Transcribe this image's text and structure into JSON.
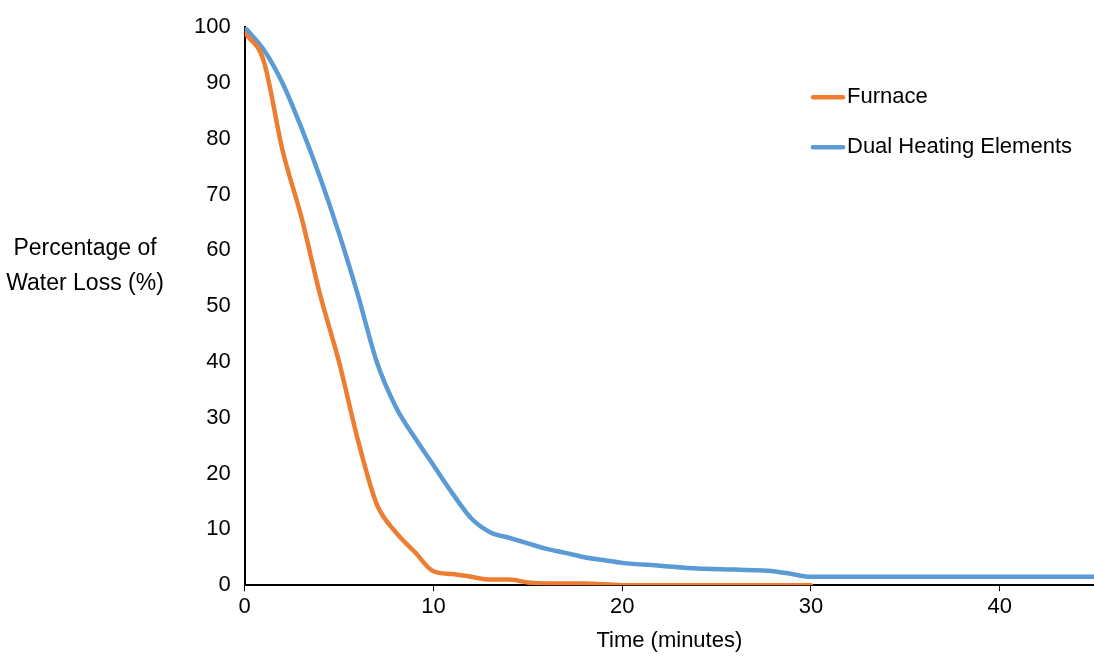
{
  "chart_data": {
    "type": "line",
    "xlabel": "Time (minutes)",
    "ylabel": "Percentage of Water Loss (%)",
    "xlim": [
      0,
      45
    ],
    "xticks": [
      0,
      10,
      20,
      30,
      40
    ],
    "ylim": [
      0,
      100
    ],
    "yticks": [
      0,
      10,
      20,
      30,
      40,
      50,
      60,
      70,
      80,
      90,
      100
    ],
    "grid": false,
    "legend": "top right",
    "marker": "none",
    "line_style": "solid",
    "series": [
      {
        "name": "Furnace",
        "color": "#ed7d31",
        "x": [
          0,
          1,
          2,
          3,
          4,
          5,
          6,
          7,
          8,
          9,
          10,
          11,
          12,
          13,
          14,
          15,
          16,
          18,
          20,
          25,
          30
        ],
        "values": [
          99,
          94,
          78,
          66,
          52,
          40,
          26,
          14.5,
          9.5,
          6,
          2.5,
          2,
          1.5,
          1,
          1,
          0.5,
          0.3,
          0.3,
          0,
          0,
          0
        ]
      },
      {
        "name": "Dual Heating Elements",
        "color": "#5b9bd5",
        "x": [
          0,
          1,
          2,
          3,
          4,
          5,
          6,
          7,
          8,
          9,
          10,
          11,
          12,
          13,
          14,
          15,
          16,
          17,
          18,
          19,
          20,
          22,
          24,
          26,
          28,
          29,
          30,
          35,
          40,
          45
        ],
        "values": [
          100,
          96,
          90,
          82,
          73,
          63,
          52,
          40,
          32,
          26.5,
          21.5,
          16.5,
          12,
          9.5,
          8.5,
          7.5,
          6.5,
          5.8,
          5,
          4.5,
          4,
          3.5,
          3,
          2.8,
          2.5,
          2,
          1.5,
          1.5,
          1.5,
          1.5
        ]
      }
    ]
  }
}
